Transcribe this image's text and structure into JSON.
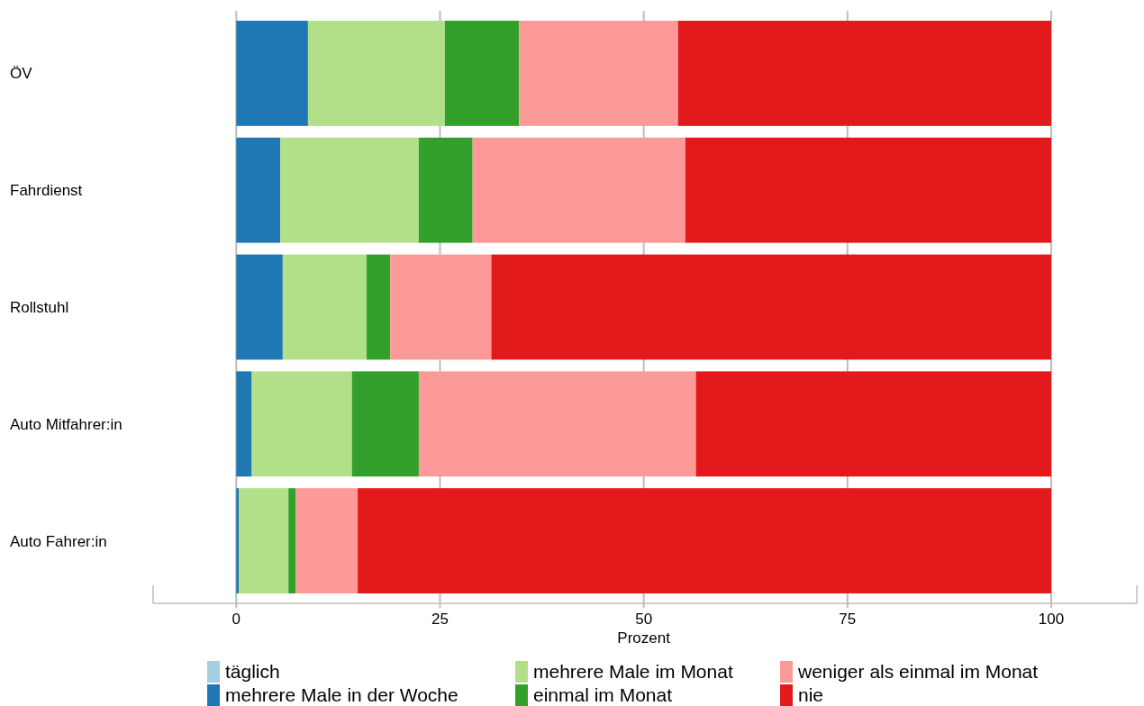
{
  "chart_data": {
    "type": "bar",
    "orientation": "horizontal",
    "stacked": true,
    "xlabel": "Prozent",
    "categories": [
      "ÖV",
      "Fahrdienst",
      "Rollstuhl",
      "Auto Mitfahrer:in",
      "Auto Fahrer:in"
    ],
    "series": [
      {
        "name": "täglich",
        "color": "#a6cee3",
        "values": [
          0,
          0,
          0,
          0,
          0
        ]
      },
      {
        "name": "mehrere Male in der Woche",
        "color": "#1f78b4",
        "values": [
          8.8,
          5.4,
          5.7,
          1.9,
          0.3
        ]
      },
      {
        "name": "mehrere Male im Monat",
        "color": "#b2df8a",
        "values": [
          16.8,
          17.0,
          10.3,
          12.3,
          6.1
        ]
      },
      {
        "name": "einmal im Monat",
        "color": "#33a02c",
        "values": [
          9.1,
          6.6,
          2.9,
          8.2,
          0.9
        ]
      },
      {
        "name": "weniger als einmal im Monat",
        "color": "#fb9a99",
        "values": [
          19.5,
          26.1,
          12.4,
          34.0,
          7.6
        ]
      },
      {
        "name": "nie",
        "color": "#e31a1c",
        "values": [
          45.8,
          44.9,
          68.7,
          43.6,
          85.1
        ]
      }
    ],
    "xlim": [
      -10.2,
      110.5
    ],
    "xticks": [
      0,
      25,
      50,
      75,
      100
    ],
    "grid": "x",
    "legend": "bottom"
  }
}
